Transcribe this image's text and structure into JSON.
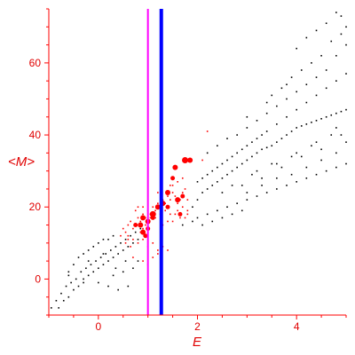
{
  "chart_data": {
    "type": "scatter",
    "title": "",
    "xlabel": "E",
    "ylabel": "<M>",
    "xlim": [
      -1.0,
      5.0
    ],
    "ylim": [
      -10.0,
      75.0
    ],
    "xticks": [
      0,
      2,
      4
    ],
    "yticks": [
      0,
      20,
      40,
      60
    ],
    "grid": false,
    "legend": "none",
    "colors": {
      "axis": "#ff0000",
      "black_points": "#000000",
      "red_points": "#ff0000",
      "magenta_line": "#ff00ff",
      "blue_line": "#0000ff"
    },
    "vlines": [
      {
        "x": 1.0,
        "color": "#ff00ff",
        "width": 2
      },
      {
        "x": 1.27,
        "color": "#0000ff",
        "width": 4
      }
    ],
    "series": [
      {
        "color": "#000000",
        "marker": "dot",
        "points": [
          [
            -0.95,
            -8
          ],
          [
            -0.85,
            -6
          ],
          [
            -0.8,
            -8
          ],
          [
            -0.75,
            -4
          ],
          [
            -0.7,
            -6
          ],
          [
            -0.65,
            -2
          ],
          [
            -0.6,
            -5
          ],
          [
            -0.55,
            -1
          ],
          [
            -0.5,
            -3
          ],
          [
            -0.45,
            0
          ],
          [
            -0.4,
            -2
          ],
          [
            -0.35,
            2
          ],
          [
            -0.3,
            0
          ],
          [
            -0.25,
            3
          ],
          [
            -0.2,
            1
          ],
          [
            -0.15,
            4
          ],
          [
            -0.1,
            2
          ],
          [
            -0.05,
            5
          ],
          [
            0.0,
            3
          ],
          [
            0.05,
            6
          ],
          [
            0.1,
            4
          ],
          [
            0.15,
            7
          ],
          [
            0.2,
            5
          ],
          [
            0.25,
            8
          ],
          [
            0.3,
            6
          ],
          [
            0.35,
            9
          ],
          [
            0.4,
            7
          ],
          [
            0.45,
            10
          ],
          [
            0.5,
            8
          ],
          [
            0.55,
            11
          ],
          [
            0.6,
            9
          ],
          [
            0.65,
            12
          ],
          [
            0.7,
            10
          ],
          [
            0.75,
            13
          ],
          [
            0.8,
            11
          ],
          [
            0.85,
            14
          ],
          [
            -0.5,
            4
          ],
          [
            -0.4,
            6
          ],
          [
            -0.3,
            7
          ],
          [
            -0.2,
            8
          ],
          [
            -0.1,
            9
          ],
          [
            0.0,
            10
          ],
          [
            0.1,
            11
          ],
          [
            0.2,
            11
          ],
          [
            0.3,
            12
          ],
          [
            -0.6,
            1
          ],
          [
            -0.3,
            -1
          ],
          [
            0.0,
            -1
          ],
          [
            0.2,
            -2
          ],
          [
            0.4,
            -3
          ],
          [
            0.6,
            -2
          ],
          [
            0.3,
            1
          ],
          [
            0.5,
            2
          ],
          [
            0.7,
            3
          ],
          [
            0.8,
            5
          ],
          [
            -0.6,
            2
          ],
          [
            -0.2,
            5
          ],
          [
            0.1,
            7
          ],
          [
            0.35,
            3
          ],
          [
            0.55,
            5
          ],
          [
            1.9,
            20
          ],
          [
            2.0,
            22
          ],
          [
            2.1,
            24
          ],
          [
            2.2,
            25
          ],
          [
            2.3,
            26
          ],
          [
            2.4,
            27
          ],
          [
            2.5,
            28
          ],
          [
            2.6,
            29
          ],
          [
            2.7,
            30
          ],
          [
            2.8,
            31
          ],
          [
            2.9,
            32
          ],
          [
            3.0,
            33
          ],
          [
            3.1,
            34
          ],
          [
            3.2,
            35
          ],
          [
            3.3,
            36
          ],
          [
            3.4,
            36.5
          ],
          [
            3.5,
            37
          ],
          [
            3.6,
            38
          ],
          [
            3.7,
            39
          ],
          [
            3.8,
            40
          ],
          [
            3.9,
            41
          ],
          [
            4.0,
            42
          ],
          [
            4.1,
            42.5
          ],
          [
            4.2,
            43
          ],
          [
            4.3,
            43.5
          ],
          [
            4.4,
            44
          ],
          [
            4.5,
            44.5
          ],
          [
            4.6,
            45
          ],
          [
            4.7,
            45.5
          ],
          [
            4.8,
            46
          ],
          [
            4.9,
            46.5
          ],
          [
            5.0,
            47
          ],
          [
            2.0,
            27
          ],
          [
            2.2,
            29
          ],
          [
            2.4,
            31
          ],
          [
            2.6,
            33
          ],
          [
            2.8,
            35
          ],
          [
            3.0,
            37
          ],
          [
            3.2,
            39
          ],
          [
            3.4,
            41
          ],
          [
            3.6,
            43
          ],
          [
            3.8,
            45
          ],
          [
            4.0,
            47
          ],
          [
            4.2,
            49
          ],
          [
            4.4,
            51
          ],
          [
            4.6,
            53
          ],
          [
            4.8,
            55
          ],
          [
            5.0,
            57
          ],
          [
            2.0,
            17
          ],
          [
            2.2,
            18
          ],
          [
            2.4,
            19
          ],
          [
            2.6,
            20
          ],
          [
            2.8,
            21
          ],
          [
            3.0,
            22
          ],
          [
            3.2,
            23
          ],
          [
            3.4,
            24
          ],
          [
            3.6,
            25
          ],
          [
            3.8,
            26
          ],
          [
            4.0,
            27
          ],
          [
            4.2,
            28
          ],
          [
            4.4,
            29
          ],
          [
            4.6,
            30
          ],
          [
            4.8,
            31
          ],
          [
            5.0,
            32
          ],
          [
            1.7,
            15
          ],
          [
            1.9,
            16
          ],
          [
            2.1,
            15
          ],
          [
            2.3,
            16
          ],
          [
            2.5,
            17
          ],
          [
            2.7,
            18
          ],
          [
            2.9,
            19
          ],
          [
            2.1,
            28
          ],
          [
            2.3,
            30
          ],
          [
            2.5,
            32
          ],
          [
            2.7,
            34
          ],
          [
            2.9,
            36
          ],
          [
            3.1,
            38
          ],
          [
            3.3,
            40
          ],
          [
            2.8,
            40
          ],
          [
            3.0,
            42
          ],
          [
            3.2,
            44
          ],
          [
            3.4,
            46
          ],
          [
            3.6,
            48
          ],
          [
            3.8,
            50
          ],
          [
            4.0,
            52
          ],
          [
            4.2,
            54
          ],
          [
            4.4,
            56
          ],
          [
            4.6,
            58
          ],
          [
            4.8,
            62
          ],
          [
            5.0,
            65
          ],
          [
            3.5,
            51
          ],
          [
            3.7,
            53
          ],
          [
            3.9,
            56
          ],
          [
            4.1,
            58
          ],
          [
            4.3,
            60
          ],
          [
            4.5,
            62
          ],
          [
            4.7,
            66
          ],
          [
            4.9,
            68
          ],
          [
            4.0,
            64
          ],
          [
            4.2,
            67
          ],
          [
            4.4,
            69
          ],
          [
            4.6,
            71
          ],
          [
            4.8,
            74
          ],
          [
            4.9,
            73
          ],
          [
            5.0,
            70
          ],
          [
            3.0,
            24
          ],
          [
            3.3,
            26
          ],
          [
            3.6,
            28
          ],
          [
            3.9,
            29
          ],
          [
            4.2,
            31
          ],
          [
            4.5,
            33
          ],
          [
            4.8,
            35
          ],
          [
            5.0,
            38
          ],
          [
            2.5,
            24
          ],
          [
            2.7,
            26
          ],
          [
            3.1,
            29
          ],
          [
            3.5,
            32
          ],
          [
            3.9,
            34
          ],
          [
            4.3,
            37
          ],
          [
            4.7,
            40
          ],
          [
            2.2,
            35
          ],
          [
            2.4,
            37
          ],
          [
            2.6,
            39
          ],
          [
            3.0,
            45
          ],
          [
            3.4,
            49
          ],
          [
            3.8,
            54
          ],
          [
            3.2,
            30
          ],
          [
            3.6,
            32
          ],
          [
            4.0,
            35
          ],
          [
            4.4,
            38
          ],
          [
            4.8,
            42
          ],
          [
            2.9,
            26
          ],
          [
            3.3,
            28
          ],
          [
            3.7,
            31
          ],
          [
            4.1,
            34
          ],
          [
            4.5,
            36
          ],
          [
            4.9,
            40
          ]
        ]
      },
      {
        "color": "#ff0000",
        "marker": "dot",
        "points": [
          [
            0.45,
            12
          ],
          [
            0.5,
            14
          ],
          [
            0.55,
            13
          ],
          [
            0.6,
            15
          ],
          [
            0.65,
            16
          ],
          [
            0.7,
            14
          ],
          [
            0.75,
            15
          ],
          [
            0.8,
            17
          ],
          [
            0.85,
            16
          ],
          [
            0.9,
            18
          ],
          [
            0.95,
            17
          ],
          [
            1.0,
            19
          ],
          [
            1.05,
            18
          ],
          [
            1.1,
            20
          ],
          [
            1.15,
            19
          ],
          [
            1.2,
            21
          ],
          [
            1.25,
            20
          ],
          [
            1.3,
            22
          ],
          [
            1.35,
            21
          ],
          [
            1.4,
            23
          ],
          [
            1.45,
            22
          ],
          [
            1.5,
            24
          ],
          [
            1.55,
            23
          ],
          [
            1.6,
            21
          ],
          [
            1.65,
            22
          ],
          [
            1.7,
            24
          ],
          [
            1.75,
            25
          ],
          [
            1.8,
            22
          ],
          [
            0.6,
            12
          ],
          [
            0.7,
            11
          ],
          [
            0.8,
            10
          ],
          [
            0.9,
            11
          ],
          [
            1.0,
            9
          ],
          [
            1.1,
            10
          ],
          [
            1.2,
            8
          ],
          [
            1.3,
            9
          ],
          [
            1.4,
            8
          ],
          [
            0.85,
            13
          ],
          [
            0.9,
            14
          ],
          [
            0.95,
            15
          ],
          [
            1.0,
            16
          ],
          [
            1.05,
            17
          ],
          [
            1.15,
            17
          ],
          [
            1.25,
            18
          ],
          [
            1.35,
            19
          ],
          [
            1.45,
            18
          ],
          [
            1.55,
            18
          ],
          [
            1.65,
            17
          ],
          [
            1.75,
            17
          ],
          [
            1.8,
            18
          ],
          [
            0.7,
            6
          ],
          [
            0.9,
            5
          ],
          [
            1.0,
            4
          ],
          [
            1.1,
            6
          ],
          [
            1.2,
            7
          ],
          [
            1.5,
            26
          ],
          [
            1.6,
            27
          ],
          [
            1.7,
            28
          ],
          [
            2.2,
            41
          ],
          [
            2.1,
            33
          ],
          [
            0.6,
            11
          ],
          [
            1.3,
            15
          ],
          [
            1.4,
            16
          ],
          [
            1.6,
            19
          ],
          [
            0.55,
            10
          ],
          [
            0.65,
            9
          ],
          [
            1.45,
            26
          ],
          [
            1.2,
            24
          ],
          [
            0.75,
            19
          ],
          [
            0.8,
            20
          ],
          [
            0.9,
            20
          ],
          [
            1.5,
            16
          ],
          [
            1.7,
            20
          ],
          [
            1.8,
            19
          ]
        ]
      },
      {
        "color": "#ff0000",
        "marker": "bubble",
        "points": [
          [
            1.75,
            33,
            3.5
          ],
          [
            1.85,
            33,
            3
          ],
          [
            1.55,
            31,
            3
          ],
          [
            1.5,
            28,
            2.5
          ],
          [
            1.4,
            24,
            3
          ],
          [
            1.3,
            21,
            3
          ],
          [
            1.2,
            20,
            3
          ],
          [
            1.1,
            18,
            3.5
          ],
          [
            1.0,
            16,
            3
          ],
          [
            0.9,
            17,
            3
          ],
          [
            0.85,
            15,
            3
          ],
          [
            0.75,
            15,
            2.5
          ],
          [
            0.9,
            13,
            3
          ],
          [
            1.0,
            14,
            2.5
          ],
          [
            1.1,
            17,
            2.5
          ],
          [
            1.6,
            22,
            3
          ],
          [
            1.7,
            23,
            2.5
          ],
          [
            0.95,
            12,
            2.5
          ],
          [
            1.4,
            20,
            2.5
          ],
          [
            1.65,
            18,
            2.5
          ]
        ]
      }
    ]
  }
}
